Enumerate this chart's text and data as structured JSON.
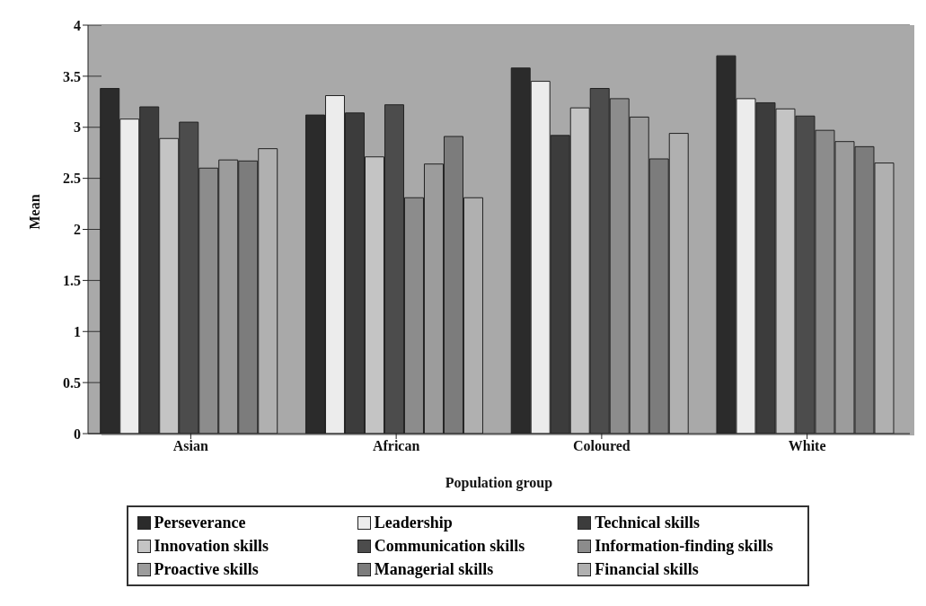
{
  "chart_data": {
    "type": "bar",
    "xlabel": "Population group",
    "ylabel": "Mean",
    "categories": [
      "Asian",
      "African",
      "Coloured",
      "White"
    ],
    "series": [
      {
        "name": "Perseverance",
        "color": "#2b2b2b",
        "values": [
          3.38,
          3.12,
          3.58,
          3.7
        ]
      },
      {
        "name": "Leadership",
        "color": "#ececec",
        "values": [
          3.08,
          3.31,
          3.45,
          3.28
        ]
      },
      {
        "name": "Technical skills",
        "color": "#3c3c3c",
        "values": [
          3.2,
          3.14,
          2.92,
          3.24
        ]
      },
      {
        "name": "Innovation skills",
        "color": "#c4c4c4",
        "values": [
          2.89,
          2.71,
          3.19,
          3.18
        ]
      },
      {
        "name": "Communication skills",
        "color": "#4c4c4c",
        "values": [
          3.05,
          3.22,
          3.38,
          3.11
        ]
      },
      {
        "name": "Information-finding skills",
        "color": "#8c8c8c",
        "values": [
          2.6,
          2.31,
          3.28,
          2.97
        ]
      },
      {
        "name": "Proactive skills",
        "color": "#9c9c9c",
        "values": [
          2.68,
          2.64,
          3.1,
          2.86
        ]
      },
      {
        "name": "Managerial skills",
        "color": "#7c7c7c",
        "values": [
          2.67,
          2.91,
          2.69,
          2.81
        ]
      },
      {
        "name": "Financial skills",
        "color": "#b0b0b0",
        "values": [
          2.79,
          2.31,
          2.94,
          2.65
        ]
      }
    ],
    "ylim": [
      0,
      4
    ],
    "yticks": [
      0,
      0.5,
      1,
      1.5,
      2,
      2.5,
      3,
      3.5,
      4
    ],
    "grid": "y",
    "legend": "bottom"
  }
}
